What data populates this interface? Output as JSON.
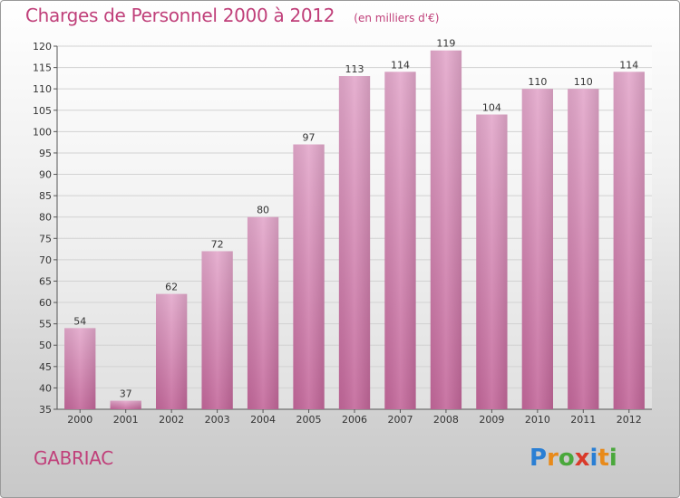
{
  "chart_data": {
    "type": "bar",
    "title": "Charges de Personnel 2000 à 2012",
    "subtitle": "(en milliers d'€)",
    "categories": [
      "2000",
      "2001",
      "2002",
      "2003",
      "2004",
      "2005",
      "2006",
      "2007",
      "2008",
      "2009",
      "2010",
      "2011",
      "2012"
    ],
    "values": [
      54,
      37,
      62,
      72,
      80,
      97,
      113,
      114,
      119,
      104,
      110,
      110,
      114
    ],
    "ylim": [
      35,
      120
    ],
    "yticks": [
      35,
      40,
      45,
      50,
      55,
      60,
      65,
      70,
      75,
      80,
      85,
      90,
      95,
      100,
      105,
      110,
      115,
      120
    ],
    "xlabel": "",
    "ylabel": "",
    "grid": true,
    "bar_color": "#c3679a"
  },
  "footer": {
    "commune": "GABRIAC",
    "logo": [
      "P",
      "r",
      "o",
      "x",
      "i",
      "t",
      "i"
    ],
    "logo_colors": [
      "#2a7fd4",
      "#e88a1a",
      "#4aa83c",
      "#d93a2a",
      "#2a7fd4",
      "#e88a1a",
      "#4aa83c"
    ]
  }
}
